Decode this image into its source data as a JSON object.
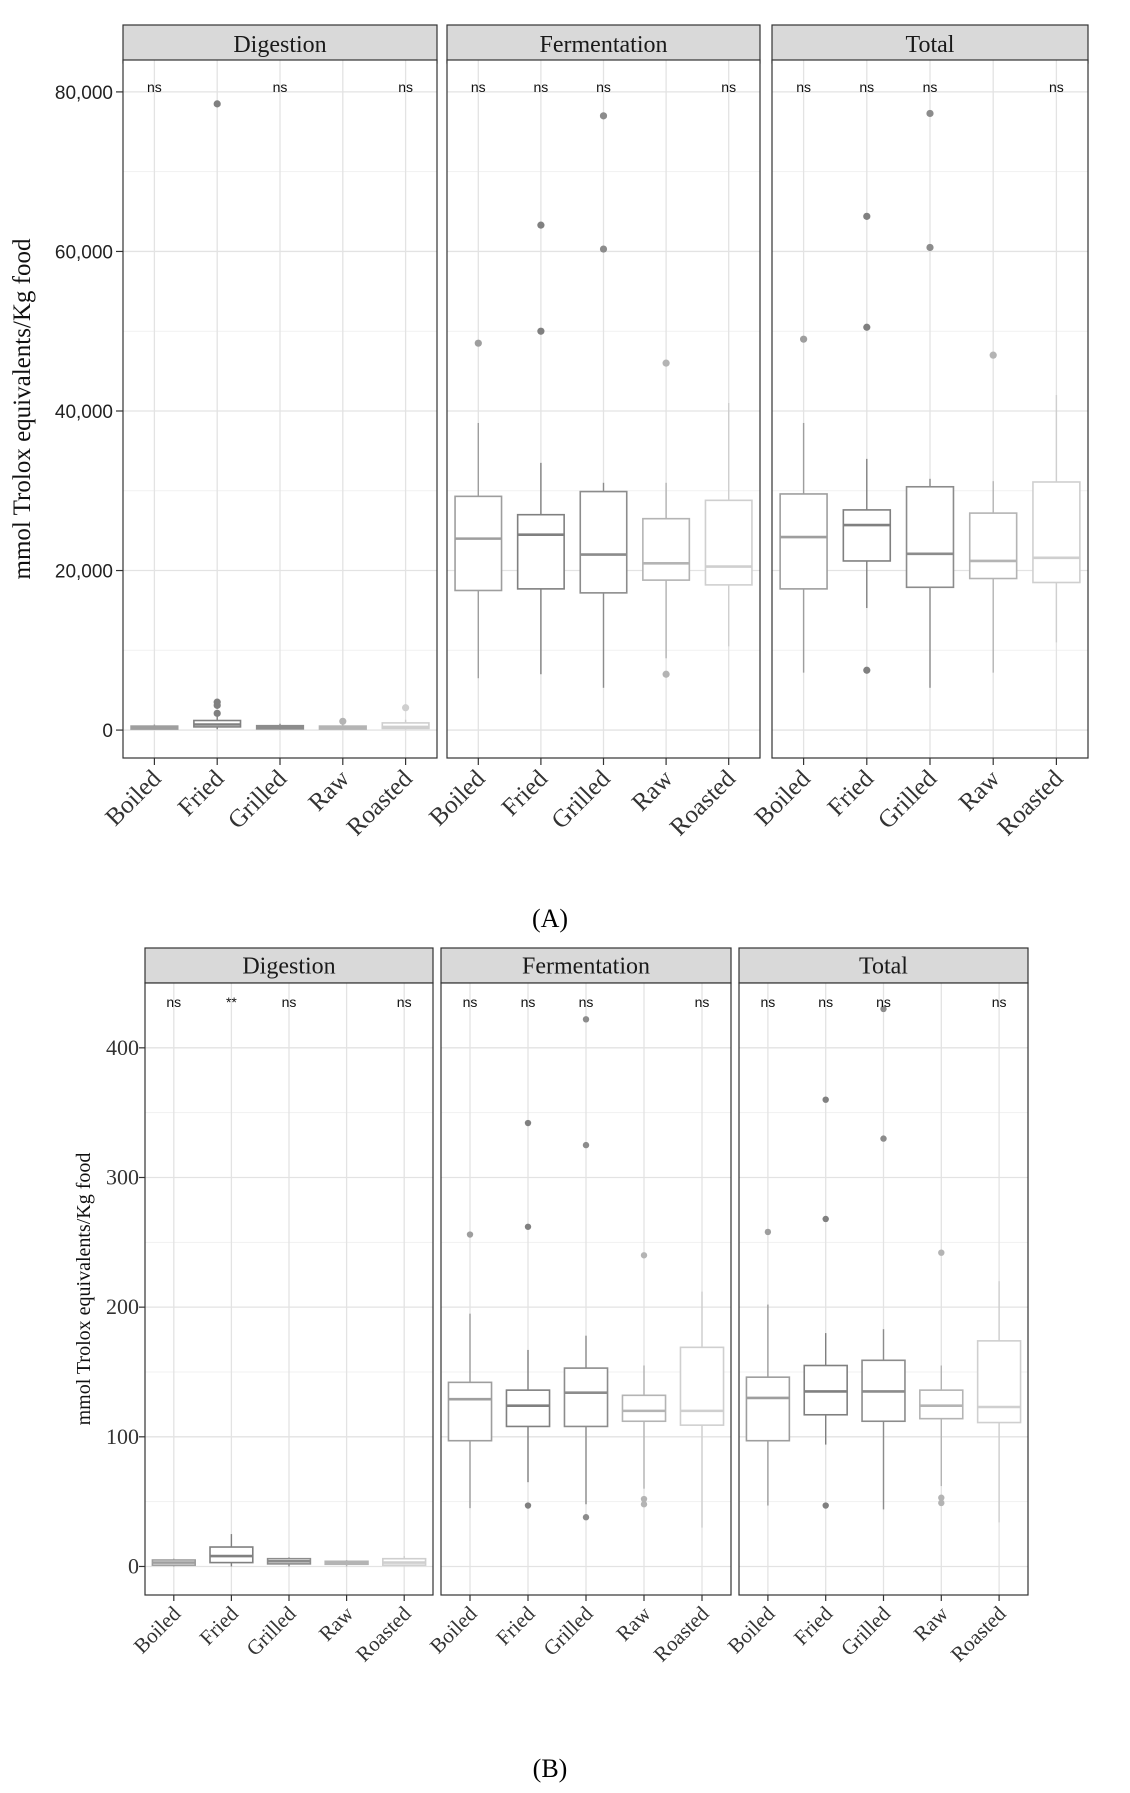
{
  "chart_data": [
    {
      "type": "boxplot",
      "panel_label": "(A)",
      "label_letter": "A",
      "ylabel": "mmol Trolox equivalents/Kg food",
      "ylim": [
        -3500,
        84000
      ],
      "yticks": [
        0,
        20000,
        40000,
        60000,
        80000
      ],
      "ytick_labels": [
        "0",
        "20,000",
        "40,000",
        "60,000",
        "80,000"
      ],
      "minor_yticks": [
        10000,
        30000,
        50000,
        70000
      ],
      "categories": [
        "Boiled",
        "Fried",
        "Grilled",
        "Raw",
        "Roasted"
      ],
      "colors": [
        "#9e9e9e",
        "#808080",
        "#8c8c8c",
        "#b4b4b4",
        "#cfcfcf"
      ],
      "facets": [
        {
          "name": "Digestion",
          "sig": [
            "ns",
            "",
            "ns",
            "",
            "ns"
          ],
          "boxes": [
            {
              "q1": 150,
              "median": 300,
              "q3": 500,
              "lo": 50,
              "hi": 700,
              "outliers": []
            },
            {
              "q1": 400,
              "median": 700,
              "q3": 1200,
              "lo": 100,
              "hi": 1800,
              "outliers": [
                2100,
                3100,
                3500,
                78500
              ]
            },
            {
              "q1": 150,
              "median": 300,
              "q3": 550,
              "lo": 50,
              "hi": 800,
              "outliers": []
            },
            {
              "q1": 150,
              "median": 300,
              "q3": 500,
              "lo": 50,
              "hi": 700,
              "outliers": [
                1100
              ]
            },
            {
              "q1": 200,
              "median": 400,
              "q3": 900,
              "lo": 50,
              "hi": 1300,
              "outliers": [
                2800
              ]
            }
          ]
        },
        {
          "name": "Fermentation",
          "sig": [
            "ns",
            "ns",
            "ns",
            "",
            "ns"
          ],
          "boxes": [
            {
              "q1": 17500,
              "median": 24000,
              "q3": 29300,
              "lo": 6500,
              "hi": 38500,
              "outliers": [
                48500
              ]
            },
            {
              "q1": 17700,
              "median": 24500,
              "q3": 27000,
              "lo": 7000,
              "hi": 33500,
              "outliers": [
                50000,
                63300
              ]
            },
            {
              "q1": 17200,
              "median": 22000,
              "q3": 29900,
              "lo": 5300,
              "hi": 31000,
              "outliers": [
                60300,
                77000
              ]
            },
            {
              "q1": 18800,
              "median": 20900,
              "q3": 26500,
              "lo": 9000,
              "hi": 31000,
              "outliers": [
                7000,
                46000
              ]
            },
            {
              "q1": 18200,
              "median": 20500,
              "q3": 28800,
              "lo": 10500,
              "hi": 41000,
              "outliers": []
            }
          ]
        },
        {
          "name": "Total",
          "sig": [
            "ns",
            "ns",
            "ns",
            "",
            "ns"
          ],
          "boxes": [
            {
              "q1": 17700,
              "median": 24200,
              "q3": 29600,
              "lo": 7200,
              "hi": 38500,
              "outliers": [
                49000
              ]
            },
            {
              "q1": 21200,
              "median": 25700,
              "q3": 27600,
              "lo": 15300,
              "hi": 34000,
              "outliers": [
                7500,
                50500,
                64400
              ]
            },
            {
              "q1": 17900,
              "median": 22100,
              "q3": 30500,
              "lo": 5300,
              "hi": 31500,
              "outliers": [
                60500,
                77300
              ]
            },
            {
              "q1": 19000,
              "median": 21200,
              "q3": 27200,
              "lo": 7200,
              "hi": 31200,
              "outliers": [
                47000
              ]
            },
            {
              "q1": 18500,
              "median": 21600,
              "q3": 31100,
              "lo": 11000,
              "hi": 42000,
              "outliers": []
            }
          ]
        }
      ]
    },
    {
      "type": "boxplot",
      "panel_label": "(B)",
      "label_letter": "B",
      "ylabel": "mmol Trolox equivalents/Kg food",
      "ylim": [
        -22,
        450
      ],
      "yticks": [
        0,
        100,
        200,
        300,
        400
      ],
      "ytick_labels": [
        "0",
        "100",
        "200",
        "300",
        "400"
      ],
      "minor_yticks": [
        50,
        150,
        250,
        350
      ],
      "categories": [
        "Boiled",
        "Fried",
        "Grilled",
        "Raw",
        "Roasted"
      ],
      "colors": [
        "#9e9e9e",
        "#808080",
        "#8c8c8c",
        "#b4b4b4",
        "#cfcfcf"
      ],
      "facets": [
        {
          "name": "Digestion",
          "sig": [
            "ns",
            "**",
            "ns",
            "",
            "ns"
          ],
          "boxes": [
            {
              "q1": 1,
              "median": 3,
              "q3": 5,
              "lo": 0,
              "hi": 6,
              "outliers": []
            },
            {
              "q1": 3,
              "median": 8,
              "q3": 15,
              "lo": 0,
              "hi": 25,
              "outliers": []
            },
            {
              "q1": 2,
              "median": 4,
              "q3": 6,
              "lo": 0,
              "hi": 7,
              "outliers": []
            },
            {
              "q1": 2,
              "median": 3,
              "q3": 4,
              "lo": 0,
              "hi": 5,
              "outliers": []
            },
            {
              "q1": 1,
              "median": 3,
              "q3": 6,
              "lo": 0,
              "hi": 8,
              "outliers": []
            }
          ]
        },
        {
          "name": "Fermentation",
          "sig": [
            "ns",
            "ns",
            "ns",
            "",
            "ns"
          ],
          "boxes": [
            {
              "q1": 97,
              "median": 129,
              "q3": 142,
              "lo": 45,
              "hi": 195,
              "outliers": [
                256
              ]
            },
            {
              "q1": 108,
              "median": 124,
              "q3": 136,
              "lo": 65,
              "hi": 167,
              "outliers": [
                47,
                262,
                342
              ]
            },
            {
              "q1": 108,
              "median": 134,
              "q3": 153,
              "lo": 48,
              "hi": 178,
              "outliers": [
                38,
                325,
                422
              ]
            },
            {
              "q1": 112,
              "median": 120,
              "q3": 132,
              "lo": 60,
              "hi": 155,
              "outliers": [
                48,
                52,
                240
              ]
            },
            {
              "q1": 109,
              "median": 120,
              "q3": 169,
              "lo": 30,
              "hi": 212,
              "outliers": []
            }
          ]
        },
        {
          "name": "Total",
          "sig": [
            "ns",
            "ns",
            "ns",
            "",
            "ns"
          ],
          "boxes": [
            {
              "q1": 97,
              "median": 130,
              "q3": 146,
              "lo": 47,
              "hi": 202,
              "outliers": [
                258
              ]
            },
            {
              "q1": 117,
              "median": 135,
              "q3": 155,
              "lo": 94,
              "hi": 180,
              "outliers": [
                47,
                268,
                360
              ]
            },
            {
              "q1": 112,
              "median": 135,
              "q3": 159,
              "lo": 44,
              "hi": 183,
              "outliers": [
                330,
                430
              ]
            },
            {
              "q1": 114,
              "median": 124,
              "q3": 136,
              "lo": 62,
              "hi": 155,
              "outliers": [
                49,
                53,
                242
              ]
            },
            {
              "q1": 111,
              "median": 123,
              "q3": 174,
              "lo": 34,
              "hi": 220,
              "outliers": []
            }
          ]
        }
      ]
    }
  ]
}
